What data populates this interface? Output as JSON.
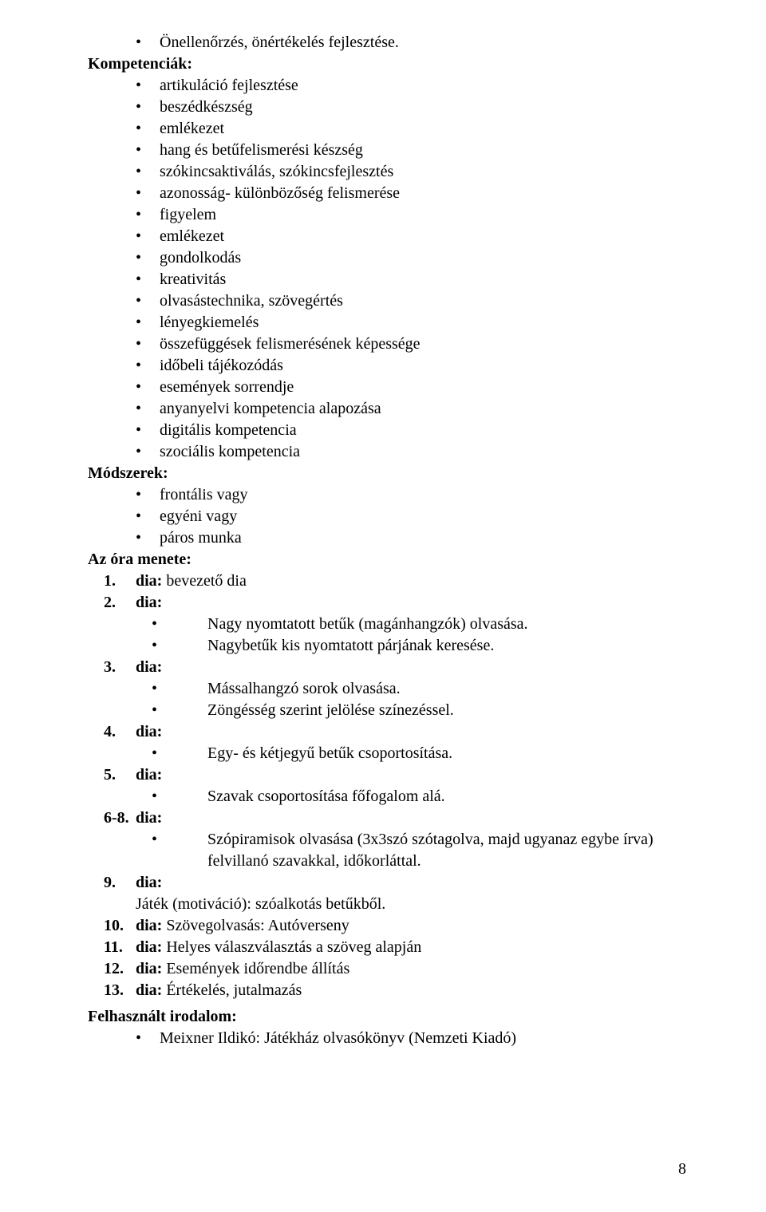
{
  "top_bullet": "Önellenőrzés, önértékelés fejlesztése.",
  "sections": {
    "kompetenciak": {
      "heading": "Kompetenciák:",
      "items": [
        "artikuláció fejlesztése",
        "beszédkészség",
        "emlékezet",
        "hang és betűfelismerési készség",
        "szókincsaktiválás, szókincsfejlesztés",
        "azonosság- különbözőség felismerése",
        "figyelem",
        "emlékezet",
        "gondolkodás",
        "kreativitás",
        "olvasástechnika, szövegértés",
        "lényegkiemelés",
        "összefüggések felismerésének képessége",
        "időbeli tájékozódás",
        "események sorrendje",
        "anyanyelvi kompetencia alapozása",
        "digitális kompetencia",
        "szociális kompetencia"
      ]
    },
    "modszerek": {
      "heading": "Módszerek:",
      "items": [
        "frontális vagy",
        "egyéni vagy",
        "páros munka"
      ]
    },
    "menete": {
      "heading": "Az óra menete:",
      "items": [
        {
          "num": "1.",
          "label": "dia:",
          "after": " bevezető dia"
        },
        {
          "num": "2.",
          "label": "dia:",
          "bullets": [
            "Nagy nyomtatott betűk (magánhangzók) olvasása.",
            "Nagybetűk kis nyomtatott párjának keresése."
          ]
        },
        {
          "num": "3.",
          "label": "dia:",
          "bullets": [
            "Mássalhangzó sorok olvasása.",
            "Zöngésség szerint jelölése színezéssel."
          ]
        },
        {
          "num": "4.",
          "label": "dia:",
          "bullets": [
            "Egy- és kétjegyű betűk csoportosítása."
          ]
        },
        {
          "num": "5.",
          "label": "dia:",
          "bullets": [
            "Szavak csoportosítása főfogalom alá."
          ]
        },
        {
          "num": "6-8.",
          "label": "dia:",
          "bullets": [
            "Szópiramisok olvasása (3x3szó szótagolva, majd ugyanaz egybe írva) felvillanó szavakkal, időkorláttal."
          ]
        },
        {
          "num": "9.",
          "label": "dia:",
          "plain": "Játék (motiváció): szóalkotás betűkből."
        },
        {
          "num": "10.",
          "label": "dia:",
          "after": " Szövegolvasás: Autóverseny"
        },
        {
          "num": "11.",
          "label": "dia:",
          "after": " Helyes válaszválasztás a szöveg alapján"
        },
        {
          "num": "12.",
          "label": "dia:",
          "after": " Események időrendbe állítás"
        },
        {
          "num": "13.",
          "label": "dia:",
          "after": " Értékelés, jutalmazás"
        }
      ]
    },
    "irodalom": {
      "heading": "Felhasznált irodalom:",
      "items": [
        "Meixner Ildikó: Játékház olvasókönyv (Nemzeti Kiadó)"
      ]
    }
  },
  "page_number": "8"
}
